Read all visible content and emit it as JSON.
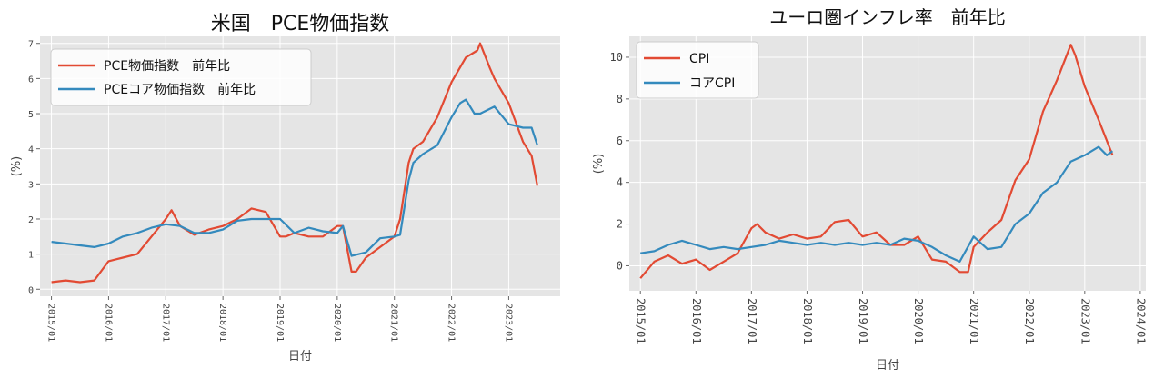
{
  "chart_data": [
    {
      "type": "line",
      "title": "米国　PCE物価指数",
      "xlabel": "日付",
      "ylabel": "(%)",
      "x_ticks": [
        "2015/01",
        "2016/01",
        "2017/01",
        "2018/01",
        "2019/01",
        "2020/01",
        "2021/01",
        "2022/01",
        "2023/01"
      ],
      "x_range": [
        2014.8,
        2023.9
      ],
      "y_ticks": [
        0,
        1,
        2,
        3,
        4,
        5,
        6,
        7
      ],
      "ylim": [
        -0.2,
        7.2
      ],
      "grid": true,
      "legend_position": "top-left",
      "series": [
        {
          "name": "PCE物価指数　前年比",
          "color": "#e24a33",
          "x": [
            2015.0,
            2015.25,
            2015.5,
            2015.75,
            2016.0,
            2016.25,
            2016.5,
            2016.75,
            2017.0,
            2017.1,
            2017.25,
            2017.5,
            2017.75,
            2018.0,
            2018.25,
            2018.5,
            2018.75,
            2019.0,
            2019.1,
            2019.25,
            2019.5,
            2019.75,
            2020.0,
            2020.1,
            2020.25,
            2020.33,
            2020.5,
            2020.75,
            2021.0,
            2021.1,
            2021.25,
            2021.33,
            2021.5,
            2021.75,
            2022.0,
            2022.25,
            2022.45,
            2022.5,
            2022.67,
            2022.75,
            2023.0,
            2023.25,
            2023.4,
            2023.5
          ],
          "values": [
            0.2,
            0.25,
            0.2,
            0.25,
            0.8,
            0.9,
            1.0,
            1.5,
            2.0,
            2.25,
            1.8,
            1.55,
            1.7,
            1.8,
            2.0,
            2.3,
            2.2,
            1.5,
            1.5,
            1.6,
            1.5,
            1.5,
            1.8,
            1.8,
            0.5,
            0.5,
            0.9,
            1.2,
            1.5,
            2.0,
            3.6,
            4.0,
            4.2,
            4.9,
            5.9,
            6.6,
            6.8,
            7.0,
            6.3,
            6.0,
            5.3,
            4.2,
            3.8,
            2.95
          ]
        },
        {
          "name": "PCEコア物価指数　前年比",
          "color": "#348abd",
          "x": [
            2015.0,
            2015.25,
            2015.5,
            2015.75,
            2016.0,
            2016.25,
            2016.5,
            2016.75,
            2017.0,
            2017.25,
            2017.5,
            2017.75,
            2018.0,
            2018.25,
            2018.5,
            2018.75,
            2019.0,
            2019.25,
            2019.5,
            2019.75,
            2020.0,
            2020.1,
            2020.25,
            2020.5,
            2020.75,
            2021.0,
            2021.1,
            2021.25,
            2021.33,
            2021.5,
            2021.75,
            2022.0,
            2022.15,
            2022.25,
            2022.4,
            2022.5,
            2022.75,
            2023.0,
            2023.25,
            2023.4,
            2023.5
          ],
          "values": [
            1.35,
            1.3,
            1.25,
            1.2,
            1.3,
            1.5,
            1.6,
            1.75,
            1.85,
            1.8,
            1.6,
            1.6,
            1.7,
            1.95,
            2.0,
            2.0,
            2.0,
            1.6,
            1.75,
            1.65,
            1.6,
            1.8,
            0.95,
            1.05,
            1.45,
            1.5,
            1.55,
            3.1,
            3.6,
            3.85,
            4.1,
            4.9,
            5.3,
            5.4,
            5.0,
            5.0,
            5.2,
            4.7,
            4.6,
            4.6,
            4.1
          ]
        }
      ]
    },
    {
      "type": "line",
      "title": "ユーロ圏インフレ率　前年比",
      "xlabel": "日付",
      "ylabel": "(%)",
      "x_ticks": [
        "2015/01",
        "2016/01",
        "2017/01",
        "2018/01",
        "2019/01",
        "2020/01",
        "2021/01",
        "2022/01",
        "2023/01",
        "2024/01"
      ],
      "x_range": [
        2014.8,
        2024.1
      ],
      "y_ticks": [
        0,
        2,
        4,
        6,
        8,
        10
      ],
      "ylim": [
        -1.2,
        11.0
      ],
      "grid": true,
      "legend_position": "top-left",
      "series": [
        {
          "name": "CPI",
          "color": "#e24a33",
          "x": [
            2015.0,
            2015.25,
            2015.5,
            2015.75,
            2016.0,
            2016.25,
            2016.5,
            2016.75,
            2017.0,
            2017.1,
            2017.25,
            2017.5,
            2017.75,
            2018.0,
            2018.25,
            2018.5,
            2018.75,
            2019.0,
            2019.25,
            2019.5,
            2019.75,
            2020.0,
            2020.25,
            2020.5,
            2020.75,
            2020.9,
            2021.0,
            2021.25,
            2021.5,
            2021.75,
            2022.0,
            2022.25,
            2022.5,
            2022.75,
            2022.83,
            2023.0,
            2023.25,
            2023.5
          ],
          "values": [
            -0.6,
            0.2,
            0.5,
            0.1,
            0.3,
            -0.2,
            0.2,
            0.6,
            1.8,
            2.0,
            1.6,
            1.3,
            1.5,
            1.3,
            1.4,
            2.1,
            2.2,
            1.4,
            1.6,
            1.0,
            1.0,
            1.4,
            0.3,
            0.2,
            -0.3,
            -0.3,
            0.9,
            1.6,
            2.2,
            4.1,
            5.1,
            7.4,
            8.9,
            10.6,
            10.1,
            8.6,
            7.0,
            5.3
          ]
        },
        {
          "name": "コアCPI",
          "color": "#348abd",
          "x": [
            2015.0,
            2015.25,
            2015.5,
            2015.75,
            2016.0,
            2016.25,
            2016.5,
            2016.75,
            2017.0,
            2017.25,
            2017.5,
            2017.75,
            2018.0,
            2018.25,
            2018.5,
            2018.75,
            2019.0,
            2019.25,
            2019.5,
            2019.75,
            2020.0,
            2020.25,
            2020.5,
            2020.75,
            2021.0,
            2021.25,
            2021.5,
            2021.75,
            2022.0,
            2022.25,
            2022.5,
            2022.75,
            2023.0,
            2023.25,
            2023.4,
            2023.5
          ],
          "values": [
            0.6,
            0.7,
            1.0,
            1.2,
            1.0,
            0.8,
            0.9,
            0.8,
            0.9,
            1.0,
            1.2,
            1.1,
            1.0,
            1.1,
            1.0,
            1.1,
            1.0,
            1.1,
            1.0,
            1.3,
            1.2,
            0.9,
            0.5,
            0.2,
            1.4,
            0.8,
            0.9,
            2.0,
            2.5,
            3.5,
            4.0,
            5.0,
            5.3,
            5.7,
            5.3,
            5.5
          ]
        }
      ]
    }
  ]
}
